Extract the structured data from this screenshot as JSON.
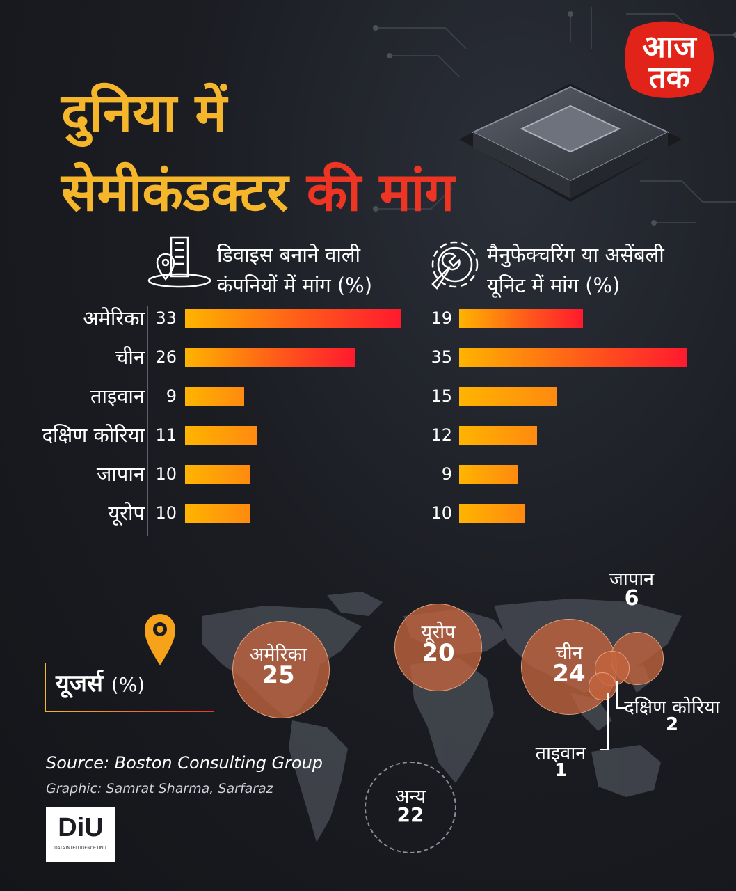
{
  "title": {
    "line1": "दुनिया में",
    "line2_part1": "सेमीकंडक्टर",
    "line2_part2": "की मांग"
  },
  "logo": {
    "line1": "आज",
    "line2": "तक"
  },
  "colors": {
    "yellow": "#f6b62b",
    "red": "#ee3524",
    "bar_start": "#ffb400",
    "bar_end": "#ff1a2e",
    "bubble": "#b05a3a"
  },
  "columns": {
    "left_header_line1": "डिवाइस बनाने वाली",
    "left_header_line2": "कंपनियों में मांग (%)",
    "right_header_line1": "मैनुफेक्चरिंग या असेंबली",
    "right_header_line2": "यूनिट में मांग (%)"
  },
  "chart_data": [
    {
      "type": "bar",
      "title": "डिवाइस बनाने वाली कंपनियों में मांग (%)",
      "categories": [
        "अमेरिका",
        "चीन",
        "ताइवान",
        "दक्षिण कोरिया",
        "जापान",
        "यूरोप"
      ],
      "values": [
        33,
        26,
        9,
        11,
        10,
        10
      ]
    },
    {
      "type": "bar",
      "title": "मैनुफेक्चरिंग या असेंबली यूनिट में मांग (%)",
      "categories": [
        "अमेरिका",
        "चीन",
        "ताइवान",
        "दक्षिण कोरिया",
        "जापान",
        "यूरोप"
      ],
      "values": [
        19,
        35,
        15,
        12,
        9,
        10
      ]
    },
    {
      "type": "bubble",
      "title": "यूजर्स (%)",
      "categories": [
        "अमेरिका",
        "यूरोप",
        "चीन",
        "जापान",
        "दक्षिण कोरिया",
        "ताइवान",
        "अन्य"
      ],
      "values": [
        25,
        20,
        24,
        6,
        2,
        1,
        22
      ]
    }
  ],
  "users": {
    "label": "यूजर्स",
    "unit": "(%)"
  },
  "source": "Source: Boston Consulting Group",
  "graphic": "Graphic: Samrat Sharma, Sarfaraz",
  "diu": {
    "big": "DiU",
    "small": "DATA INTELLIGENCE UNIT"
  }
}
